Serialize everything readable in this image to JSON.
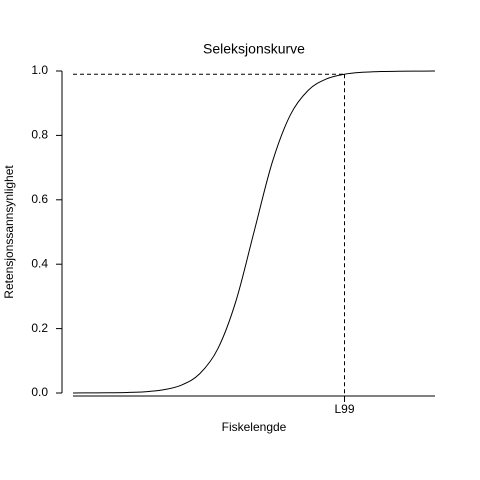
{
  "chart_data": {
    "type": "line",
    "title": "Seleksjonskurve",
    "x_label": "Fiskelengde",
    "y_label": "Retensjonssannsynlighet",
    "x": [
      0,
      5,
      10,
      15,
      20,
      25,
      30,
      35,
      40,
      45,
      50,
      55,
      60,
      65,
      70,
      75,
      80,
      85,
      90,
      95,
      100
    ],
    "series": [
      {
        "color": "#000000",
        "values": [
          0.0001,
          0.0003,
          0.0006,
          0.0016,
          0.004,
          0.01,
          0.0247,
          0.0597,
          0.1372,
          0.2852,
          0.5,
          0.7148,
          0.8628,
          0.9403,
          0.9753,
          0.99,
          0.996,
          0.9984,
          0.9994,
          0.9997,
          0.9999
        ]
      }
    ],
    "xlim": [
      0,
      100
    ],
    "ylim": [
      0,
      1
    ],
    "xticks": [
      {
        "value": 75,
        "label": "L99"
      }
    ],
    "yticks": [
      {
        "value": 0,
        "label": "0.0"
      },
      {
        "value": 0.2,
        "label": "0.2"
      },
      {
        "value": 0.4,
        "label": "0.4"
      },
      {
        "value": 0.6,
        "label": "0.6"
      },
      {
        "value": 0.8,
        "label": "0.8"
      },
      {
        "value": 1,
        "label": "1.0"
      }
    ],
    "reference": {
      "x": 75,
      "y": 0.99
    }
  }
}
